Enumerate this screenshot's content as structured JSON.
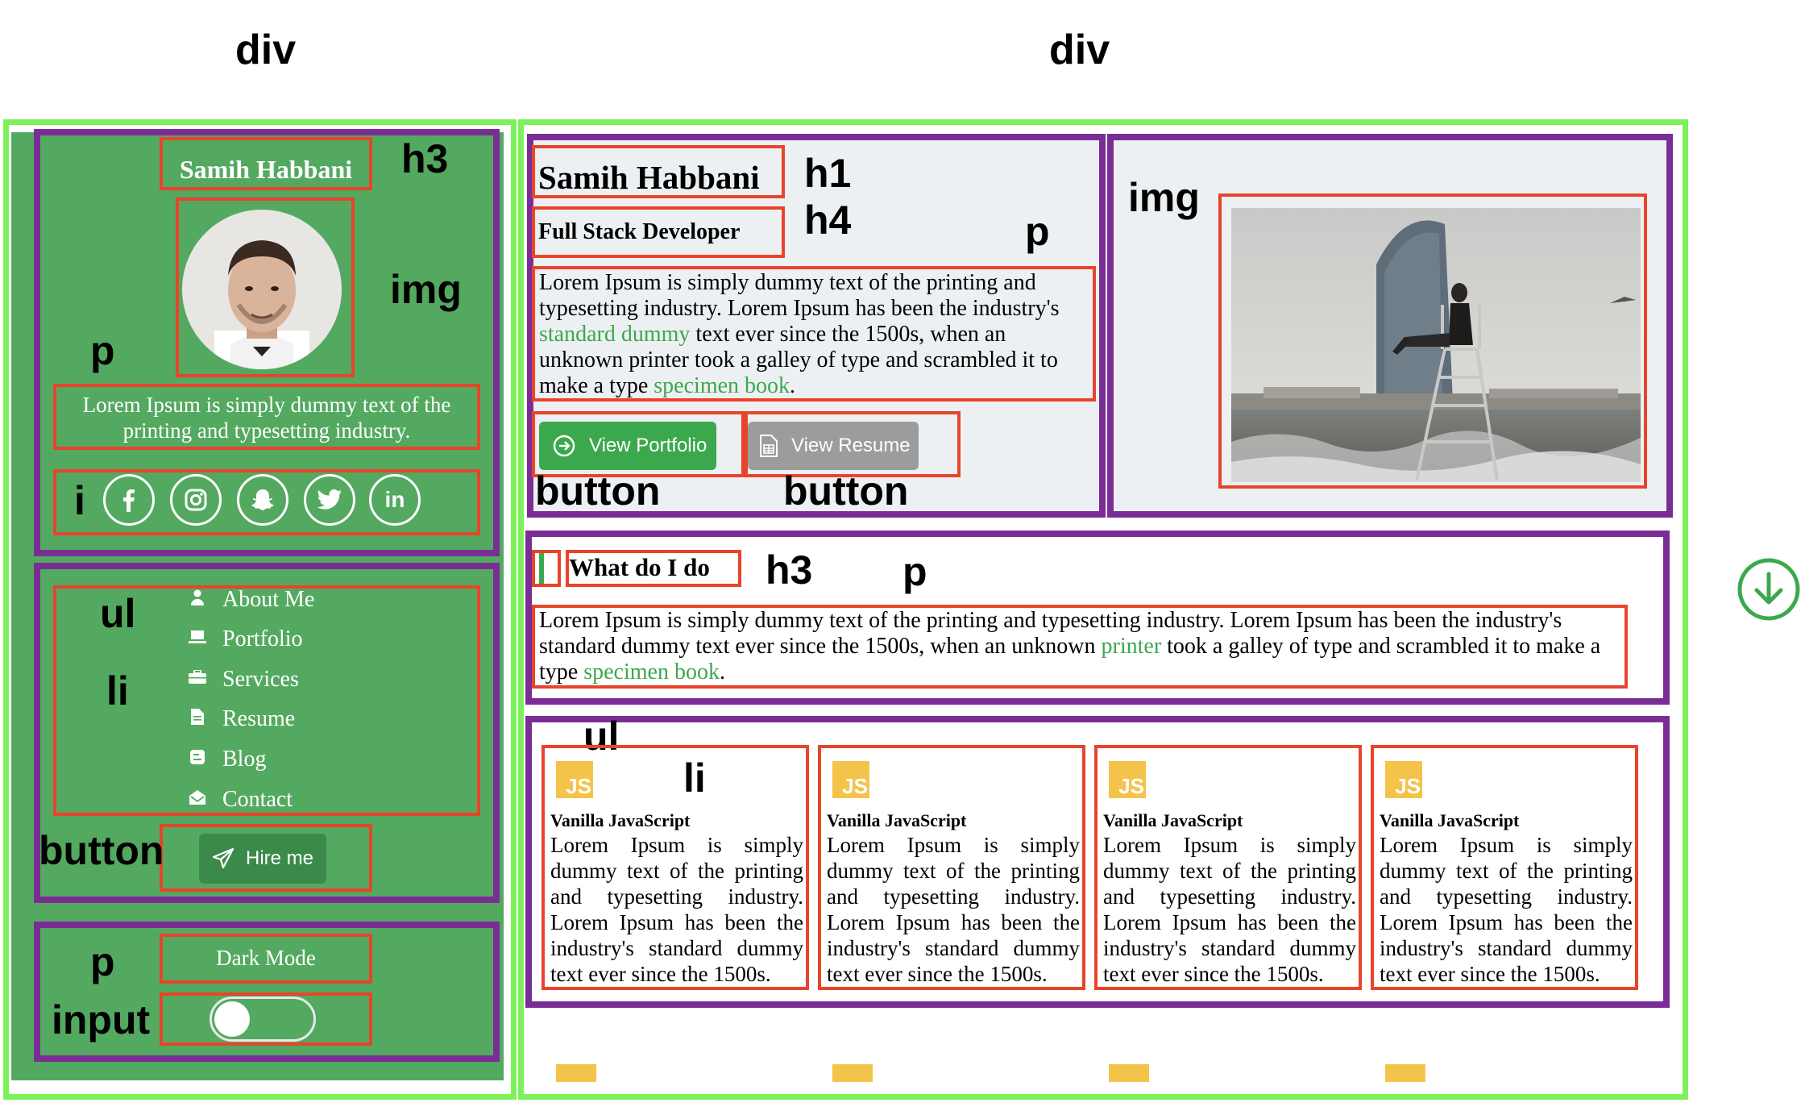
{
  "annotations": {
    "sidebar_div": "div",
    "main_div": "div",
    "h3_name": "h3",
    "img_avatar": "img",
    "p_bio": "p",
    "i_social": "i",
    "ul_nav": "ul",
    "li_nav": "li",
    "button_hire": "button",
    "p_dark": "p",
    "input_toggle": "input",
    "h1_name": "h1",
    "h4_role": "h4",
    "p_intro": "p",
    "img_hero": "img",
    "button_portfolio": "button",
    "button_resume": "button",
    "h3_what": "h3",
    "p_what": "p",
    "ul_cards": "ul",
    "li_cards": "li"
  },
  "sidebar": {
    "name": "Samih Habbani",
    "bio": "Lorem Ipsum is simply dummy text of the printing and typesetting industry.",
    "social_icons": [
      "facebook-icon",
      "instagram-icon",
      "snapchat-icon",
      "twitter-icon",
      "linkedin-icon"
    ],
    "nav": [
      {
        "label": "About Me",
        "icon": "user-icon"
      },
      {
        "label": "Portfolio",
        "icon": "laptop-icon"
      },
      {
        "label": "Services",
        "icon": "briefcase-icon"
      },
      {
        "label": "Resume",
        "icon": "file-icon"
      },
      {
        "label": "Blog",
        "icon": "blog-icon"
      },
      {
        "label": "Contact",
        "icon": "envelope-icon"
      }
    ],
    "hire_label": "Hire me",
    "dark_mode_label": "Dark Mode"
  },
  "hero": {
    "name": "Samih Habbani",
    "role": "Full Stack Developer",
    "intro_1": "Lorem Ipsum is simply dummy text of the printing and typesetting industry. Lorem Ipsum has been the industry's ",
    "intro_link_1": "standard dummy",
    "intro_2": " text ever since the 1500s, when an unknown printer took a galley of type and scrambled it to make a type ",
    "intro_link_2": "specimen book",
    "intro_3": ".",
    "portfolio_label": "View Portfolio",
    "resume_label": "View Resume"
  },
  "what": {
    "title": "What do I do",
    "text_1": "Lorem Ipsum is simply dummy text of the printing and typesetting industry. Lorem Ipsum has been the industry's standard dummy text ever since the 1500s, when an unknown ",
    "link_1": "printer",
    "text_2": " took a galley of type and scrambled it to make a type ",
    "link_2": "specimen book",
    "text_3": "."
  },
  "cards": [
    {
      "logo": "JS",
      "title": "Vanilla JavaScript",
      "text": "Lorem Ipsum is simply dummy text of the printing and typesetting industry. Lorem Ipsum has been the industry's standard dummy text ever since the 1500s."
    },
    {
      "logo": "JS",
      "title": "Vanilla JavaScript",
      "text": "Lorem Ipsum is simply dummy text of the printing and typesetting industry. Lorem Ipsum has been the industry's standard dummy text ever since the 1500s."
    },
    {
      "logo": "JS",
      "title": "Vanilla JavaScript",
      "text": "Lorem Ipsum is simply dummy text of the printing and typesetting industry. Lorem Ipsum has been the industry's standard dummy text ever since the 1500s."
    },
    {
      "logo": "JS",
      "title": "Vanilla JavaScript",
      "text": "Lorem Ipsum is simply dummy text of the printing and typesetting industry. Lorem Ipsum has been the industry's standard dummy text ever since the 1500s."
    }
  ],
  "scroll_icon": "arrow-down-circle-icon",
  "colors": {
    "sidebar_green": "#54a960",
    "accent_green": "#3ca84d",
    "annotation_green": "#7cf15a",
    "annotation_purple": "#7b2d96",
    "annotation_red": "#e8442b",
    "js_yellow": "#f4c44a"
  }
}
